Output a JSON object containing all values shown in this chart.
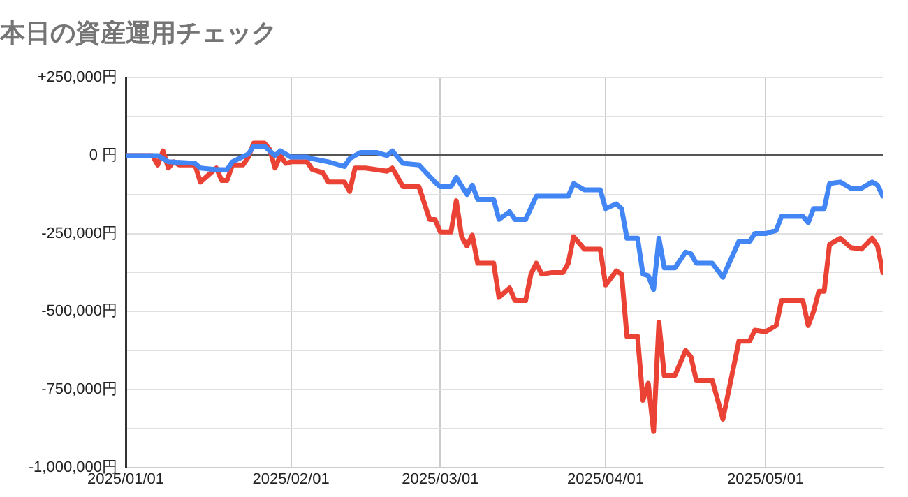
{
  "chart_data": {
    "type": "line",
    "title": "本日の資産運用チェック",
    "xlim": [
      "2025-01-01",
      "2025-05-23"
    ],
    "xticks": [
      {
        "value": "2025-01-01",
        "label": "2025/01/01"
      },
      {
        "value": "2025-02-01",
        "label": "2025/02/01"
      },
      {
        "value": "2025-03-01",
        "label": "2025/03/01"
      },
      {
        "value": "2025-04-01",
        "label": "2025/04/01"
      },
      {
        "value": "2025-05-01",
        "label": "2025/05/01"
      }
    ],
    "ylim": [
      -1000000,
      250000
    ],
    "yticks": [
      {
        "value": -1000000,
        "label": "-1,000,000円"
      },
      {
        "value": -875000,
        "label": null
      },
      {
        "value": -750000,
        "label": "-750,000円"
      },
      {
        "value": -625000,
        "label": null
      },
      {
        "value": -500000,
        "label": "-500,000円"
      },
      {
        "value": -375000,
        "label": null
      },
      {
        "value": -250000,
        "label": "-250,000円"
      },
      {
        "value": -125000,
        "label": null
      },
      {
        "value": 0,
        "label": "0 円"
      },
      {
        "value": 125000,
        "label": null
      },
      {
        "value": 250000,
        "label": "+250,000円"
      }
    ],
    "grid": true,
    "legend": false,
    "marker": "none",
    "line_style": "solid",
    "series": [
      {
        "color": "#4285f4",
        "x": [
          "2025-01-01",
          "2025-01-07",
          "2025-01-09",
          "2025-01-14",
          "2025-01-15",
          "2025-01-18",
          "2025-01-20",
          "2025-01-21",
          "2025-01-24",
          "2025-01-25",
          "2025-01-27",
          "2025-01-29",
          "2025-01-30",
          "2025-02-01",
          "2025-02-04",
          "2025-02-05",
          "2025-02-08",
          "2025-02-11",
          "2025-02-12",
          "2025-02-14",
          "2025-02-17",
          "2025-02-19",
          "2025-02-20",
          "2025-02-22",
          "2025-02-25",
          "2025-02-28",
          "2025-03-01",
          "2025-03-03",
          "2025-03-04",
          "2025-03-06",
          "2025-03-07",
          "2025-03-08",
          "2025-03-11",
          "2025-03-12",
          "2025-03-14",
          "2025-03-15",
          "2025-03-17",
          "2025-03-19",
          "2025-03-25",
          "2025-03-26",
          "2025-03-28",
          "2025-03-31",
          "2025-04-01",
          "2025-04-03",
          "2025-04-04",
          "2025-04-05",
          "2025-04-07",
          "2025-04-08",
          "2025-04-09",
          "2025-04-10",
          "2025-04-11",
          "2025-04-12",
          "2025-04-14",
          "2025-04-16",
          "2025-04-17",
          "2025-04-18",
          "2025-04-21",
          "2025-04-23",
          "2025-04-26",
          "2025-04-28",
          "2025-04-29",
          "2025-05-01",
          "2025-05-03",
          "2025-05-04",
          "2025-05-08",
          "2025-05-09",
          "2025-05-10",
          "2025-05-12",
          "2025-05-13",
          "2025-05-15",
          "2025-05-17",
          "2025-05-19",
          "2025-05-21",
          "2025-05-22",
          "2025-05-23"
        ],
        "values": [
          0,
          0,
          -20000,
          -25000,
          -40000,
          -45000,
          -45000,
          -20000,
          5000,
          30000,
          30000,
          0,
          15000,
          -5000,
          -5000,
          -10000,
          -20000,
          -35000,
          -10000,
          10000,
          10000,
          0,
          15000,
          -25000,
          -30000,
          -85000,
          -100000,
          -100000,
          -70000,
          -125000,
          -95000,
          -140000,
          -140000,
          -205000,
          -180000,
          -205000,
          -205000,
          -130000,
          -130000,
          -90000,
          -110000,
          -110000,
          -170000,
          -155000,
          -170000,
          -265000,
          -265000,
          -380000,
          -385000,
          -430000,
          -265000,
          -360000,
          -360000,
          -310000,
          -315000,
          -345000,
          -345000,
          -390000,
          -275000,
          -275000,
          -250000,
          -250000,
          -240000,
          -195000,
          -195000,
          -215000,
          -170000,
          -170000,
          -90000,
          -85000,
          -105000,
          -105000,
          -85000,
          -95000,
          -130000
        ]
      },
      {
        "color": "#ea4335",
        "x": [
          "2025-01-01",
          "2025-01-06",
          "2025-01-07",
          "2025-01-08",
          "2025-01-09",
          "2025-01-10",
          "2025-01-11",
          "2025-01-14",
          "2025-01-15",
          "2025-01-17",
          "2025-01-18",
          "2025-01-19",
          "2025-01-20",
          "2025-01-21",
          "2025-01-23",
          "2025-01-24",
          "2025-01-25",
          "2025-01-27",
          "2025-01-28",
          "2025-01-29",
          "2025-01-30",
          "2025-01-31",
          "2025-02-01",
          "2025-02-04",
          "2025-02-05",
          "2025-02-07",
          "2025-02-08",
          "2025-02-11",
          "2025-02-12",
          "2025-02-13",
          "2025-02-15",
          "2025-02-17",
          "2025-02-19",
          "2025-02-20",
          "2025-02-22",
          "2025-02-25",
          "2025-02-27",
          "2025-02-28",
          "2025-03-01",
          "2025-03-03",
          "2025-03-04",
          "2025-03-05",
          "2025-03-06",
          "2025-03-07",
          "2025-03-08",
          "2025-03-11",
          "2025-03-12",
          "2025-03-14",
          "2025-03-15",
          "2025-03-17",
          "2025-03-18",
          "2025-03-19",
          "2025-03-20",
          "2025-03-22",
          "2025-03-24",
          "2025-03-25",
          "2025-03-26",
          "2025-03-28",
          "2025-03-31",
          "2025-04-01",
          "2025-04-03",
          "2025-04-04",
          "2025-04-05",
          "2025-04-07",
          "2025-04-08",
          "2025-04-09",
          "2025-04-10",
          "2025-04-11",
          "2025-04-12",
          "2025-04-14",
          "2025-04-16",
          "2025-04-17",
          "2025-04-18",
          "2025-04-21",
          "2025-04-23",
          "2025-04-26",
          "2025-04-28",
          "2025-04-29",
          "2025-05-01",
          "2025-05-03",
          "2025-05-04",
          "2025-05-08",
          "2025-05-09",
          "2025-05-10",
          "2025-05-11",
          "2025-05-12",
          "2025-05-13",
          "2025-05-15",
          "2025-05-17",
          "2025-05-19",
          "2025-05-21",
          "2025-05-22",
          "2025-05-23"
        ],
        "values": [
          0,
          0,
          -30000,
          15000,
          -40000,
          -20000,
          -30000,
          -30000,
          -85000,
          -55000,
          -40000,
          -80000,
          -80000,
          -30000,
          -30000,
          -5000,
          40000,
          40000,
          20000,
          -40000,
          0,
          -25000,
          -20000,
          -20000,
          -45000,
          -55000,
          -85000,
          -85000,
          -115000,
          -40000,
          -40000,
          -45000,
          -50000,
          -40000,
          -100000,
          -100000,
          -205000,
          -205000,
          -245000,
          -245000,
          -145000,
          -260000,
          -290000,
          -255000,
          -345000,
          -345000,
          -455000,
          -425000,
          -465000,
          -465000,
          -380000,
          -345000,
          -380000,
          -375000,
          -375000,
          -345000,
          -260000,
          -300000,
          -300000,
          -415000,
          -370000,
          -380000,
          -580000,
          -580000,
          -785000,
          -730000,
          -885000,
          -535000,
          -705000,
          -705000,
          -625000,
          -645000,
          -720000,
          -720000,
          -845000,
          -595000,
          -595000,
          -560000,
          -565000,
          -545000,
          -465000,
          -465000,
          -545000,
          -500000,
          -435000,
          -435000,
          -285000,
          -265000,
          -295000,
          -300000,
          -265000,
          -290000,
          -375000
        ]
      }
    ]
  }
}
